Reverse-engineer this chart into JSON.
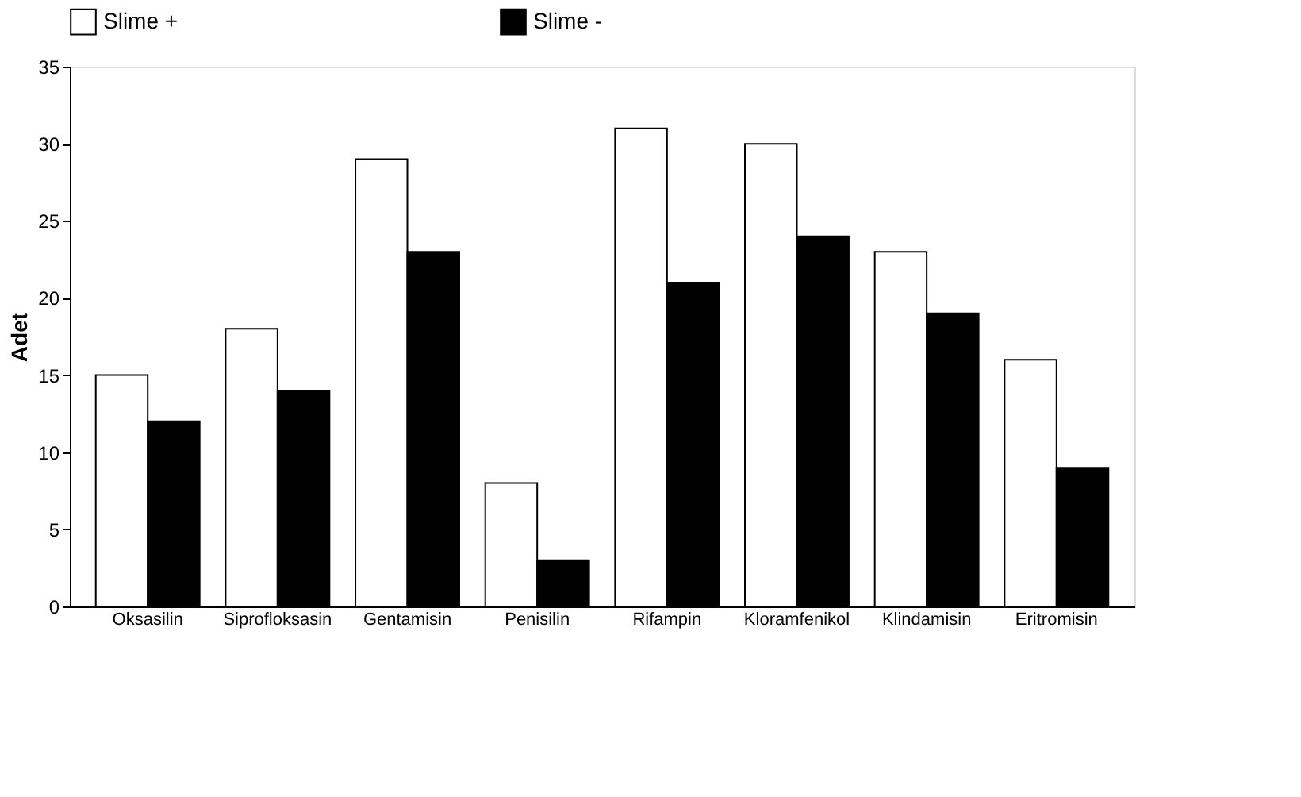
{
  "chart_data": {
    "type": "bar",
    "ylabel": "Adet",
    "categories": [
      "Oksasilin",
      "Siprofloksasin",
      "Gentamisin",
      "Penisilin",
      "Rifampin",
      "Kloramfenikol",
      "Klindamisin",
      "Eritromisin"
    ],
    "series": [
      {
        "name": "Slime +",
        "color": "#ffffff",
        "values": [
          15,
          18,
          29,
          8,
          31,
          30,
          23,
          16
        ]
      },
      {
        "name": "Slime -",
        "color": "#000000",
        "values": [
          12,
          14,
          23,
          3,
          21,
          24,
          19,
          9
        ]
      }
    ],
    "ylim": [
      0,
      35
    ],
    "yticks": [
      0,
      5,
      10,
      15,
      20,
      25,
      30,
      35
    ],
    "grid": false,
    "legend": "top"
  }
}
